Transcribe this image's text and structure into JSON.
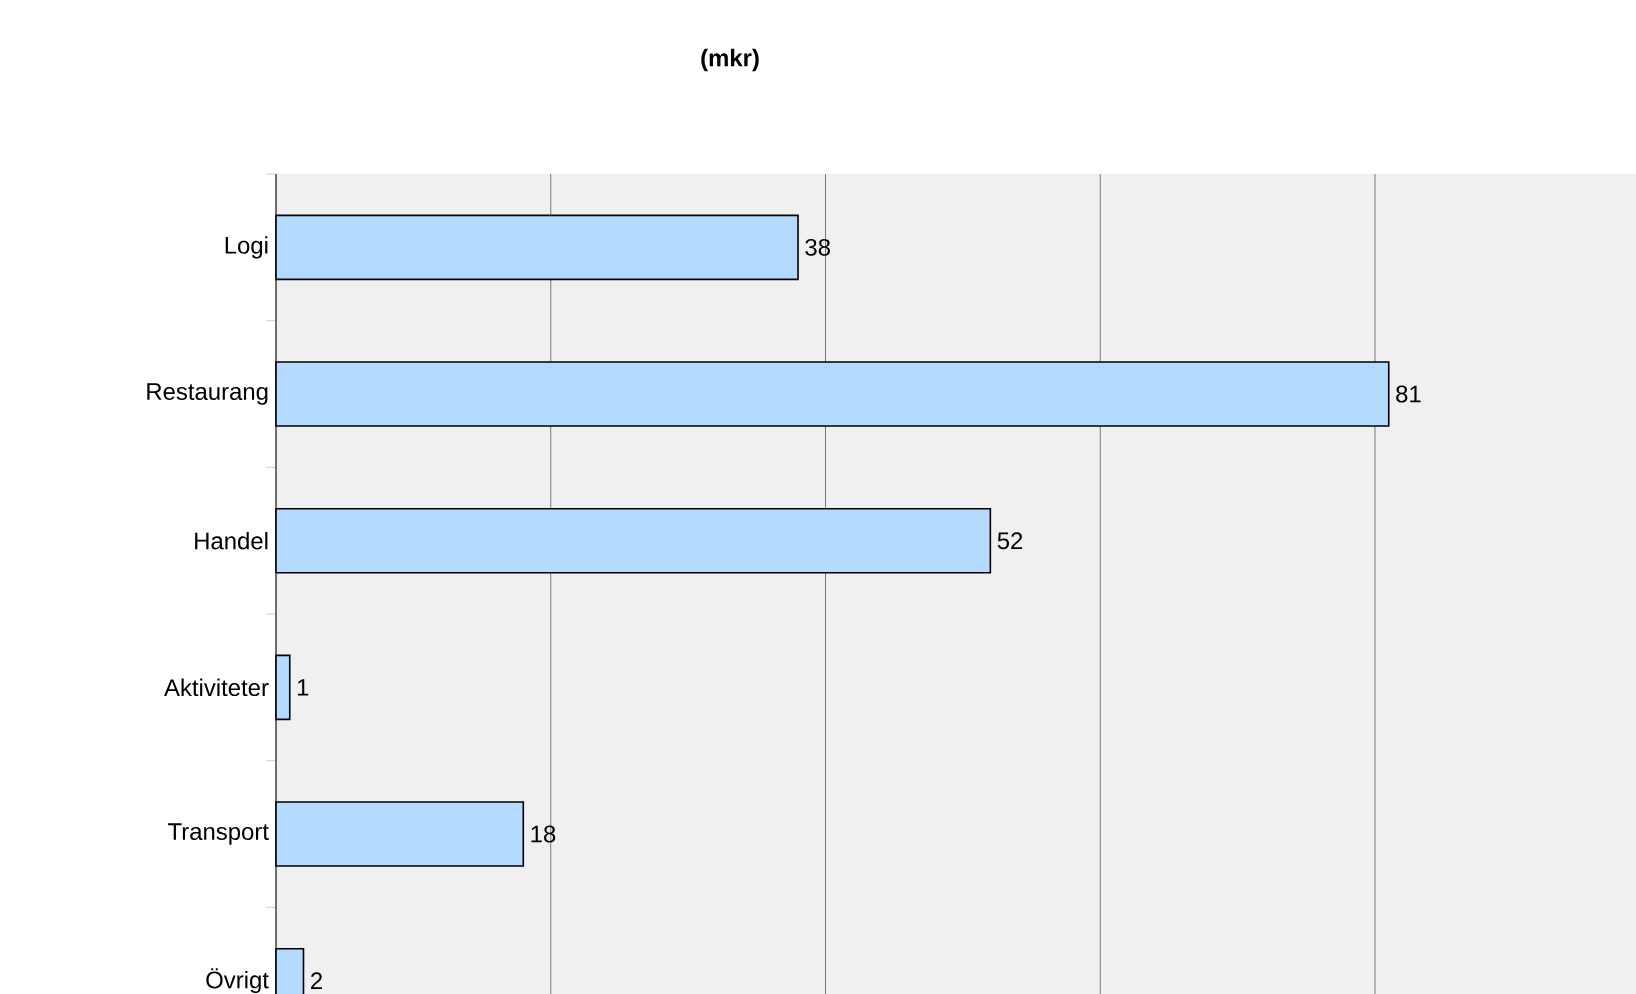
{
  "chart_data": {
    "type": "bar",
    "orientation": "horizontal",
    "title": "(mkr)",
    "categories": [
      "Logi",
      "Restaurang",
      "Handel",
      "Aktiviteter",
      "Transport",
      "Övrigt"
    ],
    "values": [
      38,
      81,
      52,
      1,
      18,
      2
    ],
    "color": "#b4dbff",
    "xlim": [
      0,
      99
    ],
    "xticks": [
      {
        "value": 0,
        "label": null
      },
      {
        "value": 20,
        "label": null
      },
      {
        "value": 40,
        "label": null
      },
      {
        "value": 60,
        "label": null
      },
      {
        "value": 80,
        "label": null
      }
    ],
    "grid": "x",
    "data_labels": true,
    "tick_labels": "y"
  }
}
